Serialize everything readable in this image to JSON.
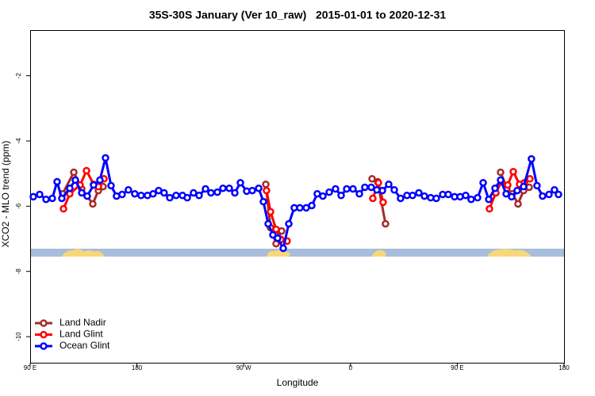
{
  "chart_data": {
    "type": "line",
    "title": "35S-30S January (Ver 10_raw)   2015-01-01 to 2020-12-31",
    "x_label": "Longitude",
    "y_label": "XCO2 - MLO trend (ppm)",
    "xlim": [
      90,
      540
    ],
    "ylim": [
      -10.8,
      -0.6
    ],
    "xticks": [
      {
        "value": 90,
        "label": "90 E"
      },
      180,
      {
        "value": 270,
        "label": "90 W"
      },
      {
        "value": 360,
        "label": "0"
      },
      {
        "value": 450,
        "label": "90 E"
      },
      180
    ],
    "yticks": [
      -10,
      -8,
      -6,
      -4,
      -2
    ],
    "legend": "bottom-left",
    "series": [
      {
        "name": "Land Nadir",
        "color": "#a52a2a",
        "x": [
          117.4,
          126.8,
          133.5,
          142.8,
          147.5,
          151.5,
          null,
          288.6,
          292.6,
          297.3,
          302.0,
          null,
          378.2,
          382.9,
          389.5,
          null,
          486.5,
          491.8,
          496.5,
          501.2,
          505.9,
          510.6
        ],
        "values": [
          -5.62,
          -4.96,
          -5.47,
          -5.93,
          -5.52,
          -5.4,
          null,
          -5.33,
          -6.66,
          -7.15,
          -6.76,
          null,
          -5.16,
          -5.25,
          -6.54,
          null,
          -4.96,
          -5.45,
          -5.62,
          -5.93,
          -5.52,
          -5.42
        ]
      },
      {
        "name": "Land Glint",
        "color": "#ff0000",
        "x": [
          118.1,
          123.4,
          132.1,
          137.5,
          143.5,
          147.5,
          152.2,
          null,
          289.2,
          292.6,
          297.3,
          301.3,
          306.6,
          null,
          378.8,
          383.5,
          387.5,
          null,
          477.1,
          482.5,
          487.2,
          492.5,
          497.2,
          502.5,
          506.6,
          511.2
        ],
        "values": [
          -6.08,
          -5.62,
          -5.35,
          -4.91,
          -5.33,
          -5.4,
          -5.16,
          null,
          -5.52,
          -6.17,
          -6.71,
          -7.02,
          -7.07,
          null,
          -5.76,
          -5.28,
          -5.88,
          null,
          -6.08,
          -5.59,
          -5.25,
          -5.35,
          -4.94,
          -5.33,
          -5.28,
          -5.16
        ]
      },
      {
        "name": "Ocean Glint",
        "color": "#0000ff",
        "x": [
          92.7,
          98.0,
          103.4,
          108.7,
          112.7,
          116.7,
          123.4,
          128.1,
          133.5,
          138.1,
          143.5,
          148.8,
          153.5,
          158.2,
          162.8,
          167.5,
          172.8,
          178.2,
          183.5,
          188.9,
          193.6,
          198.3,
          202.9,
          207.7,
          213.0,
          218.4,
          222.4,
          227.7,
          232.4,
          237.8,
          242.4,
          247.8,
          252.5,
          257.8,
          262.5,
          267.2,
          272.5,
          277.2,
          282.6,
          286.6,
          290.6,
          294.6,
          298.6,
          303.3,
          308.0,
          312.6,
          317.3,
          322.7,
          327.4,
          332.0,
          336.7,
          342.1,
          347.4,
          352.1,
          356.8,
          362.1,
          367.5,
          372.1,
          377.5,
          382.2,
          386.9,
          392.2,
          396.9,
          402.2,
          407.6,
          412.3,
          417.6,
          422.3,
          427.6,
          432.3,
          437.7,
          442.4,
          447.7,
          452.4,
          457.1,
          461.7,
          467.1,
          471.8,
          476.5,
          481.8,
          486.5,
          491.2,
          495.8,
          500.5,
          505.9,
          512.5,
          517.2,
          521.9,
          527.3,
          531.9,
          535.3
        ],
        "values": [
          -5.71,
          -5.64,
          -5.79,
          -5.76,
          -5.25,
          -5.76,
          -5.45,
          -5.2,
          -5.59,
          -5.69,
          -5.35,
          -5.2,
          -4.52,
          -5.37,
          -5.69,
          -5.64,
          -5.5,
          -5.62,
          -5.67,
          -5.67,
          -5.62,
          -5.52,
          -5.59,
          -5.74,
          -5.67,
          -5.67,
          -5.74,
          -5.59,
          -5.67,
          -5.47,
          -5.59,
          -5.57,
          -5.45,
          -5.45,
          -5.59,
          -5.28,
          -5.54,
          -5.52,
          -5.45,
          -5.86,
          -6.54,
          -6.88,
          -6.98,
          -7.29,
          -6.54,
          -6.05,
          -6.05,
          -6.05,
          -5.98,
          -5.62,
          -5.69,
          -5.57,
          -5.47,
          -5.67,
          -5.47,
          -5.47,
          -5.62,
          -5.42,
          -5.42,
          -5.5,
          -5.52,
          -5.33,
          -5.5,
          -5.76,
          -5.67,
          -5.67,
          -5.59,
          -5.69,
          -5.74,
          -5.76,
          -5.64,
          -5.64,
          -5.71,
          -5.71,
          -5.67,
          -5.79,
          -5.74,
          -5.28,
          -5.79,
          -5.45,
          -5.2,
          -5.62,
          -5.71,
          -5.52,
          -5.4,
          -4.55,
          -5.37,
          -5.69,
          -5.64,
          -5.5,
          -5.64
        ]
      }
    ]
  }
}
